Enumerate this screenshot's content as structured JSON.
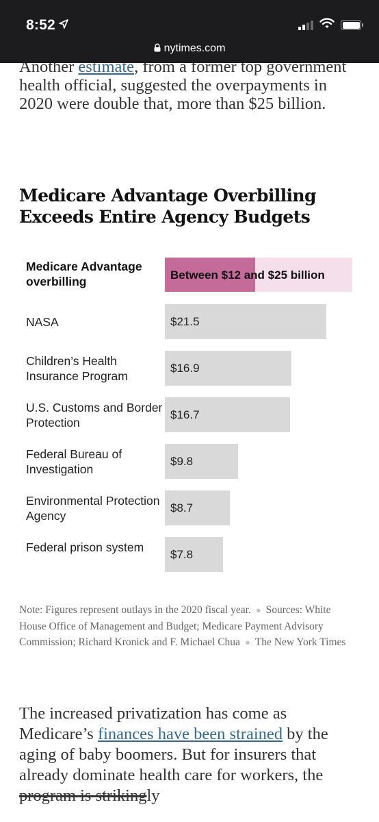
{
  "status_bar": {
    "time": "8:52",
    "url": "nytimes.com"
  },
  "article": {
    "para1_line1_pre": "Another ",
    "para1_line1_link": "estimate",
    "para1_line1_post": ", from a former top",
    "para1_rest": "government health official, suggested the overpayments in 2020 were double that, more than $25 billion.",
    "para2_pre": "The increased privatization has come as Medicare’s ",
    "para2_link": "finances have been strained",
    "para2_mid": " by the aging of baby boomers. But for insurers that already dominate health care for workers, the ",
    "para2_strike": "program is striking",
    "para2_post": "ly"
  },
  "chart_data": {
    "type": "bar",
    "orientation": "horizontal",
    "title": "Medicare Advantage Overbilling Exceeds Entire Agency Budgets",
    "unit": "billions of dollars",
    "highlight": {
      "label": "Medicare Advantage overbilling",
      "range": [
        12,
        25
      ],
      "value_label": "Between $12 and $25 billion"
    },
    "categories": [
      "NASA",
      "Children’s Health Insurance Program",
      "U.S. Customs and Border Protection",
      "Federal Bureau of Investigation",
      "Environmental Protection Agency",
      "Federal prison system"
    ],
    "values": [
      21.5,
      16.9,
      16.7,
      9.8,
      8.7,
      7.8
    ],
    "value_labels": [
      "$21.5",
      "$16.9",
      "$16.7",
      "$9.8",
      "$8.7",
      "$7.8"
    ],
    "xlim": [
      0,
      25
    ],
    "grid": false,
    "legend": "none",
    "colors": {
      "highlight_fill": "#c56b9a",
      "highlight_range": "#f5dfea",
      "bar": "#d9d9d9"
    }
  },
  "note": {
    "line": "Note: Figures represent outlays in the 2020 fiscal year.",
    "sources": "Sources: White House Office of Management and Budget; Medicare Payment Advisory Commission; Richard Kronick and F. Michael Chua",
    "credit": "The New York Times"
  }
}
